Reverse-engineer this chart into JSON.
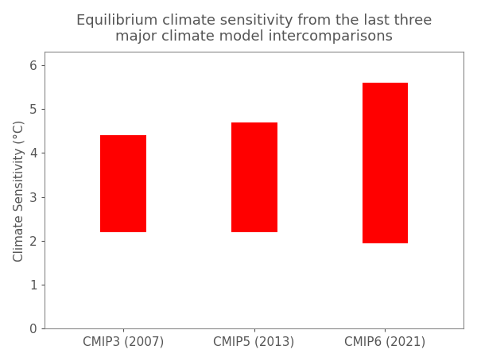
{
  "title": "Equilibrium climate sensitivity from the last three\nmajor climate model intercomparisons",
  "ylabel": "Climate Sensitivity (°C)",
  "categories": [
    "CMIP3 (2007)",
    "CMIP5 (2013)",
    "CMIP6 (2021)"
  ],
  "bar_bottoms": [
    2.2,
    2.2,
    1.95
  ],
  "bar_tops": [
    4.4,
    4.7,
    5.6
  ],
  "bar_color": "#ff0000",
  "ylim": [
    0,
    6.3
  ],
  "yticks": [
    0,
    1,
    2,
    3,
    4,
    5,
    6
  ],
  "background_color": "#ffffff",
  "plot_bg_color": "#ffffff",
  "title_fontsize": 13,
  "label_fontsize": 11,
  "tick_fontsize": 11,
  "bar_width": 0.35
}
